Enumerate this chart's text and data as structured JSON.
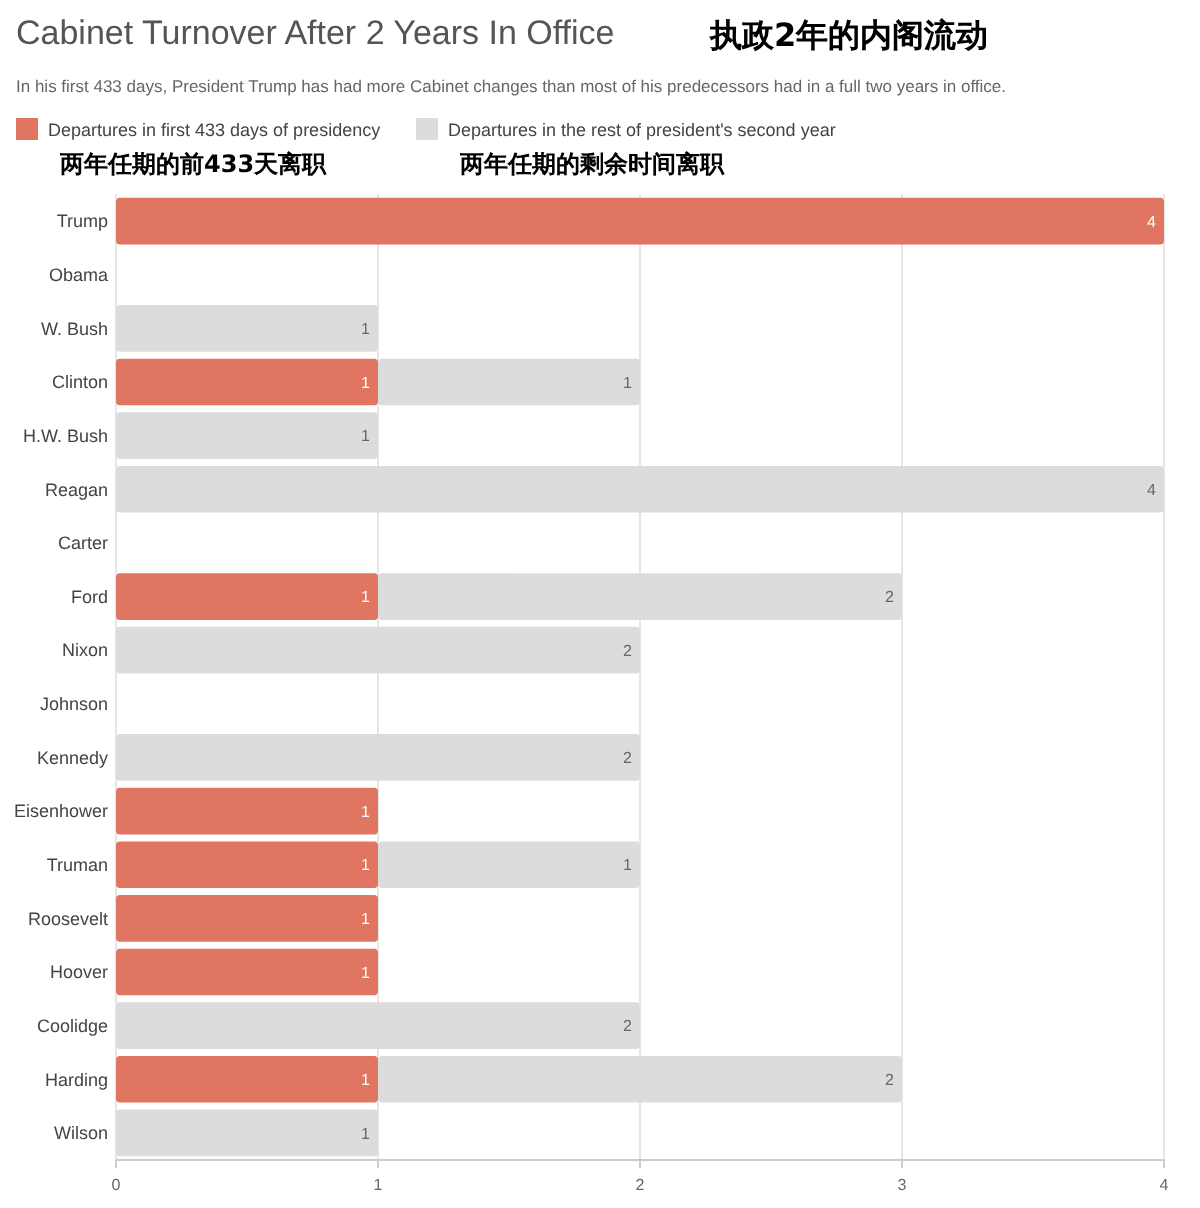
{
  "chart_data": {
    "type": "bar",
    "orientation": "horizontal",
    "stacked": true,
    "title": "Cabinet Turnover After 2 Years In Office",
    "subtitle": "In his first 433 days, President Trump has had more Cabinet changes than most of his predecessors had in a full two years in office.",
    "annotations": [
      "执政2年的内阁流动",
      "两年任期的前433天离职",
      "两年任期的剩余时间离职"
    ],
    "categories": [
      "Trump",
      "Obama",
      "W. Bush",
      "Clinton",
      "H.W. Bush",
      "Reagan",
      "Carter",
      "Ford",
      "Nixon",
      "Johnson",
      "Kennedy",
      "Eisenhower",
      "Truman",
      "Roosevelt",
      "Hoover",
      "Coolidge",
      "Harding",
      "Wilson"
    ],
    "series": [
      {
        "name": "Departures in first 433 days of presidency",
        "color": "#e07561",
        "values": [
          4,
          0,
          0,
          1,
          0,
          0,
          0,
          1,
          0,
          0,
          0,
          1,
          1,
          1,
          1,
          0,
          1,
          0
        ],
        "value_labels": [
          "4",
          null,
          null,
          "1",
          null,
          null,
          null,
          "1",
          null,
          null,
          null,
          "1",
          "1",
          "1",
          "1",
          null,
          "1",
          null
        ]
      },
      {
        "name": "Departures in the rest of president's second year",
        "color": "#dcdcdc",
        "values": [
          0,
          0,
          1,
          1,
          1,
          4,
          0,
          2,
          2,
          0,
          2,
          0,
          1,
          0,
          0,
          2,
          2,
          1
        ],
        "value_labels": [
          null,
          null,
          "1",
          "1",
          "1",
          "4",
          null,
          "2",
          "2",
          null,
          "2",
          null,
          "1",
          null,
          null,
          "2",
          "2",
          "1"
        ]
      }
    ],
    "xlim": [
      0,
      4
    ],
    "xticks": [
      0,
      1,
      2,
      3,
      4
    ],
    "grid": "x",
    "legend": "top left"
  }
}
